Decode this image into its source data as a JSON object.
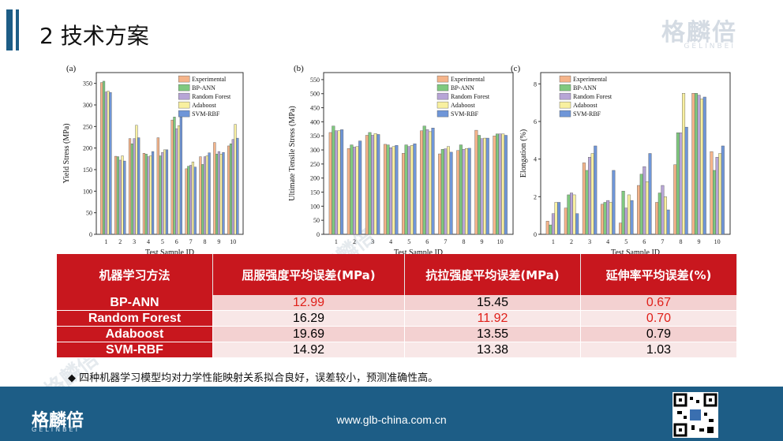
{
  "header": {
    "title": "2  技术方案",
    "logo_text": "格麟倍",
    "logo_sub": "GELINBEI"
  },
  "chart_data": [
    {
      "type": "bar",
      "panel": "(a)",
      "xlabel": "Test Sample ID",
      "ylabel": "Yield Stress (MPa)",
      "ylim": [
        0,
        375
      ],
      "yticks": [
        0,
        50,
        100,
        150,
        200,
        250,
        300,
        350
      ],
      "categories": [
        "1",
        "2",
        "3",
        "4",
        "5",
        "6",
        "7",
        "8",
        "9",
        "10"
      ],
      "legend_position": "top-right",
      "series": [
        {
          "name": "Experimental",
          "color": "#f5b48a",
          "values": [
            352,
            181,
            222,
            188,
            224,
            265,
            152,
            180,
            213,
            205
          ]
        },
        {
          "name": "BP-ANN",
          "color": "#7fc97f",
          "values": [
            355,
            180,
            210,
            186,
            182,
            272,
            158,
            162,
            186,
            210
          ]
        },
        {
          "name": "Random Forest",
          "color": "#b7a5d6",
          "values": [
            330,
            172,
            222,
            180,
            190,
            245,
            160,
            180,
            192,
            220
          ]
        },
        {
          "name": "Adaboost",
          "color": "#f8f0a0",
          "values": [
            332,
            182,
            253,
            182,
            196,
            252,
            168,
            182,
            186,
            255
          ]
        },
        {
          "name": "SVM-RBF",
          "color": "#6f96d8",
          "values": [
            329,
            170,
            224,
            192,
            196,
            272,
            156,
            189,
            190,
            223
          ]
        }
      ]
    },
    {
      "type": "bar",
      "panel": "(b)",
      "xlabel": "Test Sample ID",
      "ylabel": "Ultimate Tensile Stress (MPa)",
      "ylim": [
        0,
        575
      ],
      "yticks": [
        0,
        50,
        100,
        150,
        200,
        250,
        300,
        350,
        400,
        450,
        500,
        550
      ],
      "categories": [
        "1",
        "2",
        "3",
        "4",
        "5",
        "6",
        "7",
        "8",
        "9",
        "10"
      ],
      "legend_position": "top-right",
      "series": [
        {
          "name": "Experimental",
          "color": "#f5b48a",
          "values": [
            362,
            305,
            352,
            320,
            288,
            368,
            286,
            298,
            370,
            350
          ]
        },
        {
          "name": "BP-ANN",
          "color": "#7fc97f",
          "values": [
            385,
            318,
            362,
            318,
            318,
            385,
            302,
            318,
            352,
            357
          ]
        },
        {
          "name": "Random Forest",
          "color": "#b7a5d6",
          "values": [
            368,
            310,
            352,
            308,
            312,
            372,
            304,
            302,
            340,
            357
          ]
        },
        {
          "name": "Adaboost",
          "color": "#f8f0a0",
          "values": [
            368,
            312,
            358,
            312,
            316,
            365,
            312,
            305,
            342,
            357
          ]
        },
        {
          "name": "SVM-RBF",
          "color": "#6f96d8",
          "values": [
            372,
            332,
            355,
            316,
            322,
            378,
            292,
            306,
            342,
            352
          ]
        }
      ]
    },
    {
      "type": "bar",
      "panel": "(c)",
      "xlabel": "Test Sample ID",
      "ylabel": "Elongation (%)",
      "ylim": [
        0,
        8.6
      ],
      "yticks": [
        0,
        2,
        4,
        6,
        8
      ],
      "categories": [
        "1",
        "2",
        "3",
        "4",
        "5",
        "6",
        "7",
        "8",
        "9",
        "10"
      ],
      "legend_position": "top-left",
      "series": [
        {
          "name": "Experimental",
          "color": "#f5b48a",
          "values": [
            0.7,
            1.4,
            3.8,
            1.6,
            0.6,
            2.6,
            1.7,
            3.7,
            7.5,
            4.4
          ]
        },
        {
          "name": "BP-ANN",
          "color": "#7fc97f",
          "values": [
            0.5,
            2.1,
            3.4,
            1.7,
            2.3,
            3.2,
            2.2,
            5.4,
            7.5,
            3.4
          ]
        },
        {
          "name": "Random Forest",
          "color": "#b7a5d6",
          "values": [
            1.1,
            2.2,
            4.1,
            1.8,
            1.4,
            3.6,
            2.6,
            5.4,
            7.4,
            4.1
          ]
        },
        {
          "name": "Adaboost",
          "color": "#f8f0a0",
          "values": [
            1.7,
            2.1,
            4.3,
            1.7,
            2.1,
            2.8,
            2.0,
            7.5,
            7.2,
            4.3
          ]
        },
        {
          "name": "SVM-RBF",
          "color": "#6f96d8",
          "values": [
            1.7,
            1.1,
            4.7,
            3.4,
            1.8,
            4.3,
            1.3,
            5.7,
            7.3,
            4.7
          ]
        }
      ]
    }
  ],
  "table": {
    "headers": [
      "机器学习方法",
      "屈服强度平均误差(MPa)",
      "抗拉强度平均误差(MPa)",
      "延伸率平均误差(%)"
    ],
    "rows": [
      {
        "method": "BP-ANN",
        "ys": "12.99",
        "uts": "15.45",
        "el": "0.67"
      },
      {
        "method": "Random Forest",
        "ys": "16.29",
        "uts": "11.92",
        "el": "0.70"
      },
      {
        "method": "Adaboost",
        "ys": "19.69",
        "uts": "13.55",
        "el": "0.79"
      },
      {
        "method": "SVM-RBF",
        "ys": "14.92",
        "uts": "13.38",
        "el": "1.03"
      }
    ],
    "highlight_color": "#e0201a"
  },
  "note": "◆  四种机器学习模型均对力学性能映射关系拟合良好，误差较小，预测准确性高。",
  "footer": {
    "url": "www.glb-china.com.cn",
    "logo_text": "格麟倍",
    "logo_sub": "GELINBEI"
  },
  "colors": {
    "brand_blue": "#1d5d86",
    "table_red": "#c8171e"
  }
}
